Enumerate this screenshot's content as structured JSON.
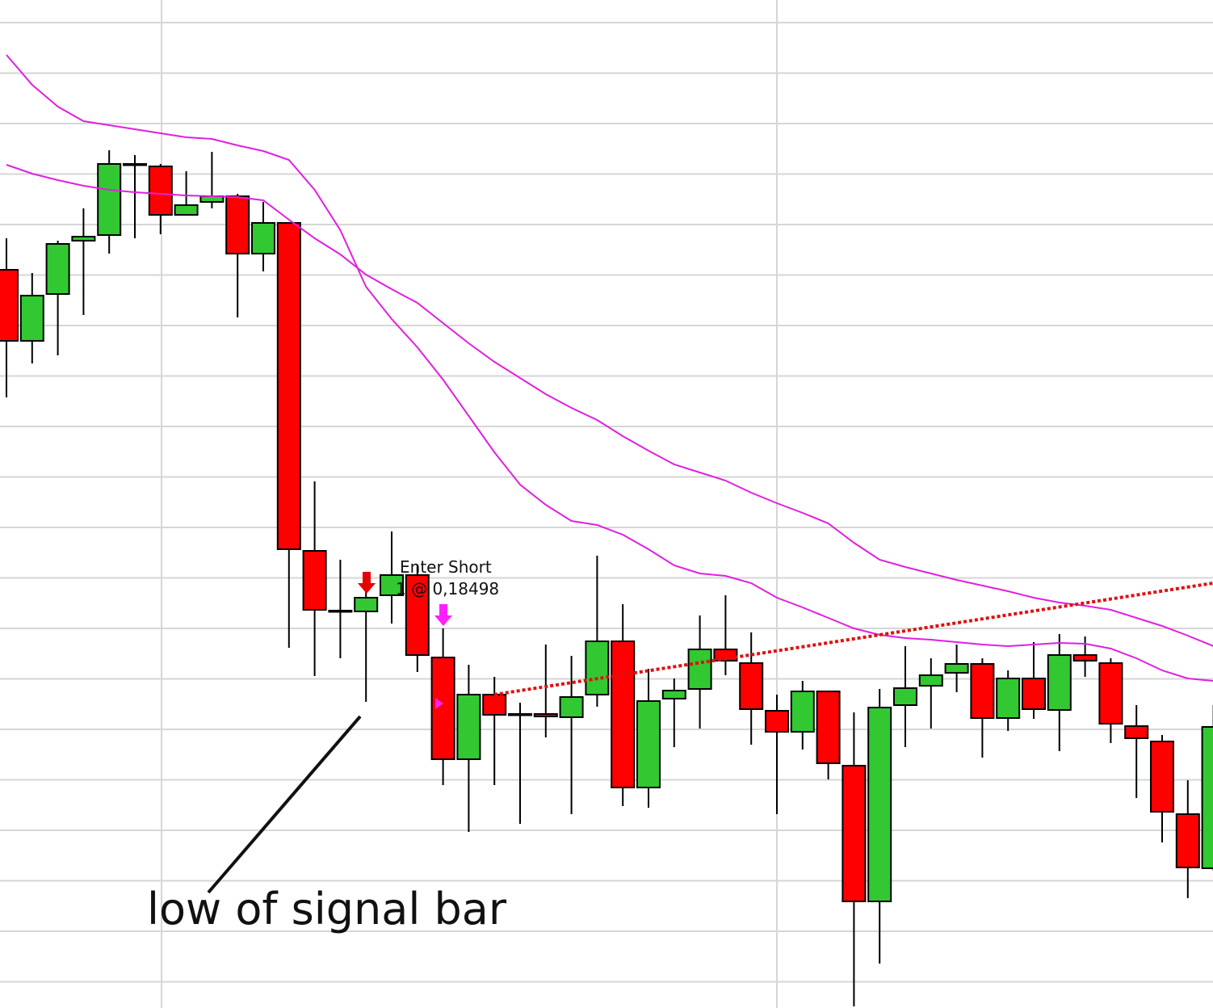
{
  "chart_data": {
    "type": "candlestick",
    "up_color": "#32c832",
    "down_color": "#ff0000",
    "ylim": [
      0.18121,
      0.19369
    ],
    "open": [
      0.19035,
      0.18947,
      0.19005,
      0.19071,
      0.19078,
      0.19165,
      0.19163,
      0.19103,
      0.19119,
      0.19126,
      0.19055,
      0.19093,
      0.18687,
      0.18613,
      0.18612,
      0.18632,
      0.18657,
      0.18555,
      0.18429,
      0.18509,
      0.18485,
      0.18485,
      0.18481,
      0.18509,
      0.18575,
      0.18394,
      0.18504,
      0.18516,
      0.18565,
      0.18548,
      0.18489,
      0.18463,
      0.18513,
      0.18421,
      0.18253,
      0.18496,
      0.1852,
      0.18536,
      0.18547,
      0.1848,
      0.18529,
      0.1849,
      0.18558,
      0.18548,
      0.1847,
      0.18451,
      0.18361,
      0.18294
    ],
    "high": [
      0.19074,
      0.19031,
      0.19071,
      0.19111,
      0.19183,
      0.19177,
      0.19166,
      0.19157,
      0.19181,
      0.19129,
      0.19119,
      0.19093,
      0.18773,
      0.18676,
      0.18649,
      0.18711,
      0.18669,
      0.18591,
      0.18546,
      0.18531,
      0.18499,
      0.18571,
      0.18557,
      0.18681,
      0.18621,
      0.18541,
      0.18529,
      0.18607,
      0.18632,
      0.18586,
      0.18509,
      0.18526,
      0.18514,
      0.18487,
      0.18516,
      0.18569,
      0.18554,
      0.18571,
      0.18554,
      0.18539,
      0.18574,
      0.18584,
      0.18581,
      0.18554,
      0.18496,
      0.18459,
      0.18403,
      0.18496
    ],
    "low": [
      0.18877,
      0.18919,
      0.18929,
      0.18979,
      0.19055,
      0.19074,
      0.19079,
      0.19103,
      0.19111,
      0.18976,
      0.19033,
      0.18567,
      0.18532,
      0.18554,
      0.185,
      0.18597,
      0.18537,
      0.18397,
      0.18339,
      0.18397,
      0.18349,
      0.18456,
      0.18361,
      0.18494,
      0.18371,
      0.18369,
      0.18444,
      0.18467,
      0.18533,
      0.18447,
      0.18361,
      0.18441,
      0.18404,
      0.18123,
      0.18176,
      0.18444,
      0.18467,
      0.18512,
      0.18431,
      0.18464,
      0.18479,
      0.18439,
      0.18531,
      0.18449,
      0.18381,
      0.18326,
      0.18257,
      0.18291
    ],
    "close": [
      0.18947,
      0.19003,
      0.19067,
      0.19076,
      0.19166,
      0.19166,
      0.19103,
      0.19115,
      0.19126,
      0.19055,
      0.19093,
      0.18689,
      0.18614,
      0.18613,
      0.18629,
      0.18657,
      0.18558,
      0.18429,
      0.18509,
      0.18484,
      0.18484,
      0.18482,
      0.18506,
      0.18575,
      0.18394,
      0.18501,
      0.18514,
      0.18565,
      0.18551,
      0.18491,
      0.18463,
      0.18513,
      0.18424,
      0.18253,
      0.18493,
      0.18517,
      0.18533,
      0.18547,
      0.1848,
      0.18529,
      0.18491,
      0.18558,
      0.18551,
      0.18473,
      0.18455,
      0.18364,
      0.18295,
      0.18469
    ],
    "series": [
      {
        "color": "#e020e0",
        "values": [
          0.19301,
          0.19264,
          0.19237,
          0.19219,
          0.19214,
          0.19209,
          0.19204,
          0.19199,
          0.19197,
          0.19189,
          0.19182,
          0.19171,
          0.19134,
          0.19084,
          0.19014,
          0.18974,
          0.18939,
          0.18899,
          0.18854,
          0.18809,
          0.18769,
          0.18744,
          0.18724,
          0.18719,
          0.18707,
          0.18689,
          0.18669,
          0.18659,
          0.18656,
          0.18647,
          0.18629,
          0.18617,
          0.18604,
          0.18591,
          0.18583,
          0.18579,
          0.18577,
          0.18574,
          0.18571,
          0.18569,
          0.18571,
          0.18573,
          0.18572,
          0.18566,
          0.18554,
          0.18539,
          0.18529,
          0.18526
        ]
      },
      {
        "color": "#e020e0",
        "values": [
          0.19165,
          0.19154,
          0.19146,
          0.19139,
          0.19134,
          0.19131,
          0.19129,
          0.19127,
          0.19126,
          0.19125,
          0.19121,
          0.19097,
          0.19074,
          0.19054,
          0.19029,
          0.19011,
          0.18994,
          0.18969,
          0.18944,
          0.18921,
          0.18901,
          0.18881,
          0.18864,
          0.18849,
          0.18829,
          0.18811,
          0.18794,
          0.18784,
          0.18774,
          0.18759,
          0.18746,
          0.18734,
          0.18721,
          0.18697,
          0.18676,
          0.18667,
          0.18659,
          0.18651,
          0.18644,
          0.18637,
          0.18629,
          0.18623,
          0.18619,
          0.18614,
          0.18604,
          0.18594,
          0.18582,
          0.18569
        ]
      }
    ],
    "entry_title": "Enter Short",
    "entry_label": "1 @ 0,18498",
    "entry_price": 0.18498,
    "annotation": "low of signal bar"
  }
}
